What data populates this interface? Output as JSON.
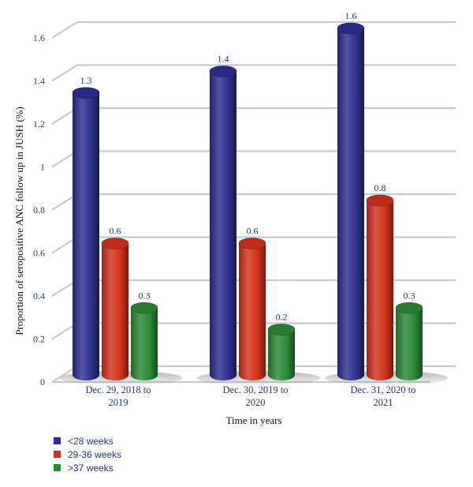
{
  "chart_data": {
    "type": "bar",
    "ylabel": "Proportion of seropositive ANC follow up in JUSH (%)",
    "xlabel": "Time in years",
    "ylim": [
      0,
      1.6
    ],
    "yticks": [
      "0",
      "0.2",
      "0.4",
      "0.6",
      "0.8",
      "1",
      "1.2",
      "1.4",
      "1.6"
    ],
    "categories": [
      [
        "Dec. 29, 2018 to",
        "2019"
      ],
      [
        "Dec. 30, 2019 to",
        "2020"
      ],
      [
        "Dec. 31, 2020 to",
        "2021"
      ]
    ],
    "series": [
      {
        "name": "<28 weeks",
        "values": [
          1.3,
          1.4,
          1.6
        ],
        "labels": [
          "1.3",
          "1.4",
          "1.6"
        ],
        "color": "#2e2f8f"
      },
      {
        "name": "29-36 weeks",
        "values": [
          0.6,
          0.6,
          0.8
        ],
        "labels": [
          "0.6",
          "0.6",
          "0.8"
        ],
        "color": "#d2321c"
      },
      {
        "name": ">37 weeks",
        "values": [
          0.3,
          0.2,
          0.3
        ],
        "labels": [
          "0.3",
          "0.2",
          "0.3"
        ],
        "color": "#2c8a38"
      }
    ],
    "legend_position": "bottom-left",
    "style": "3d-cylinder",
    "grid": true
  }
}
